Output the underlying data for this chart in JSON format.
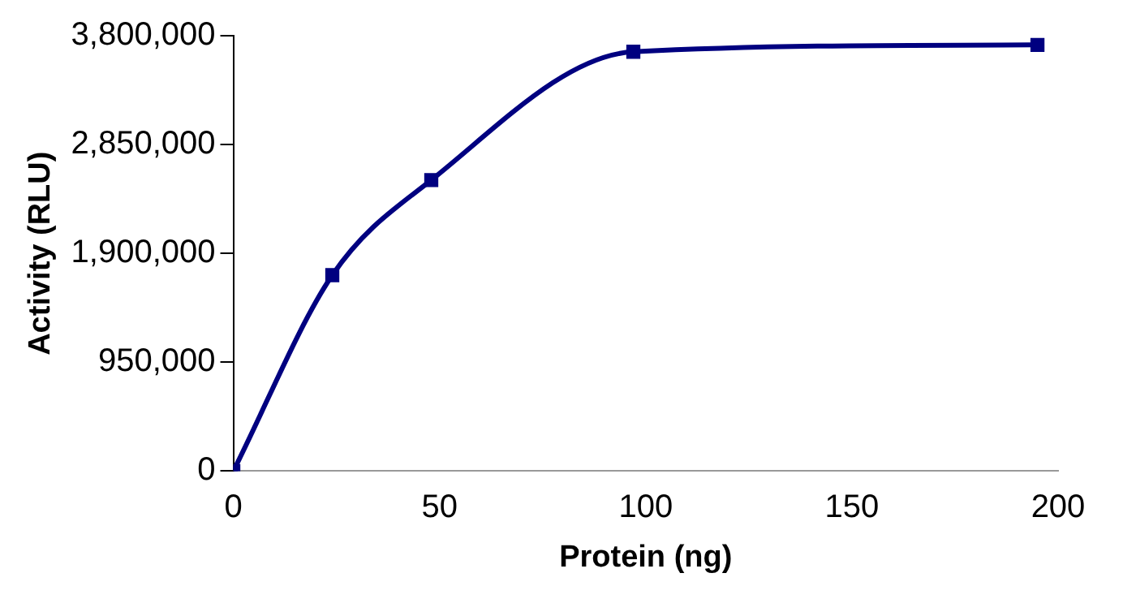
{
  "chart_data": {
    "type": "line",
    "xlabel": "Protein (ng)",
    "ylabel": "Activity (RLU)",
    "x": [
      0,
      24,
      48,
      97,
      195
    ],
    "series": [
      {
        "color": "#000080",
        "values": [
          0,
          1710000,
          2540000,
          3660000,
          3720000
        ]
      }
    ],
    "xlim": [
      0,
      200
    ],
    "xticks": [
      0,
      50,
      100,
      150,
      200
    ],
    "ylim": [
      0,
      3800000
    ],
    "yticks": [
      {
        "value": 0,
        "label": "0"
      },
      {
        "value": 950000,
        "label": "950,000"
      },
      {
        "value": 1900000,
        "label": "1,900,000"
      },
      {
        "value": 2850000,
        "label": "2,850,000"
      },
      {
        "value": 3800000,
        "label": "3,800,000"
      }
    ],
    "grid": false,
    "legend": false,
    "marker": "square",
    "line_style": "solid"
  }
}
